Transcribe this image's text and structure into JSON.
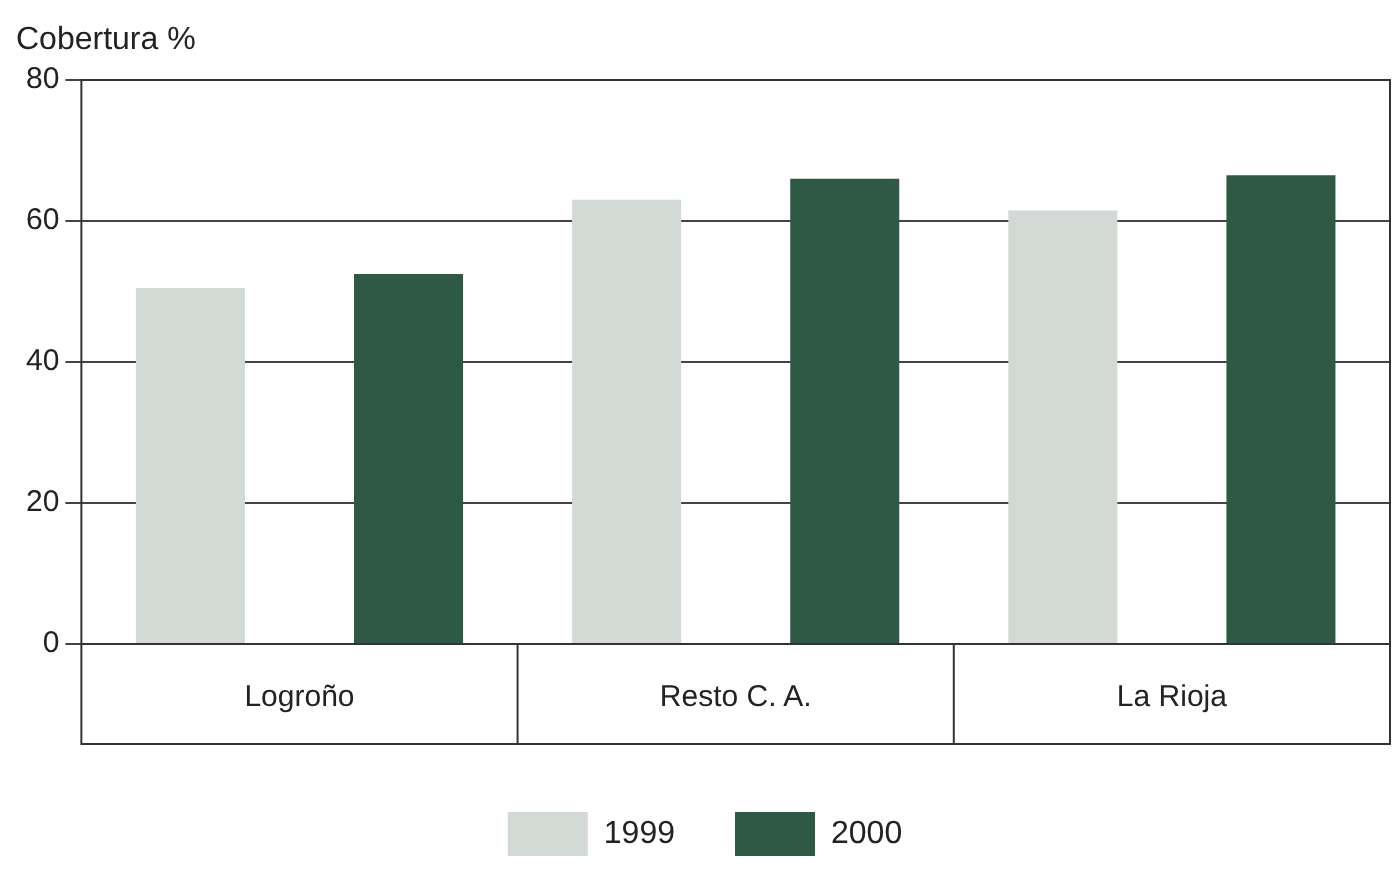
{
  "chart_data": {
    "type": "bar",
    "ylabel": "Cobertura %",
    "categories": [
      "Logroño",
      "Resto C. A.",
      "La Rioja"
    ],
    "series": [
      {
        "name": "1999",
        "color": "#d3dad5",
        "values": [
          50.5,
          63,
          61.5
        ]
      },
      {
        "name": "2000",
        "color": "#2e5a45",
        "values": [
          52.5,
          66,
          66.5
        ]
      }
    ],
    "ylim": [
      0,
      80
    ],
    "yticks": [
      0,
      20,
      40,
      60,
      80
    ],
    "grid": "y",
    "legend": "bottom"
  }
}
